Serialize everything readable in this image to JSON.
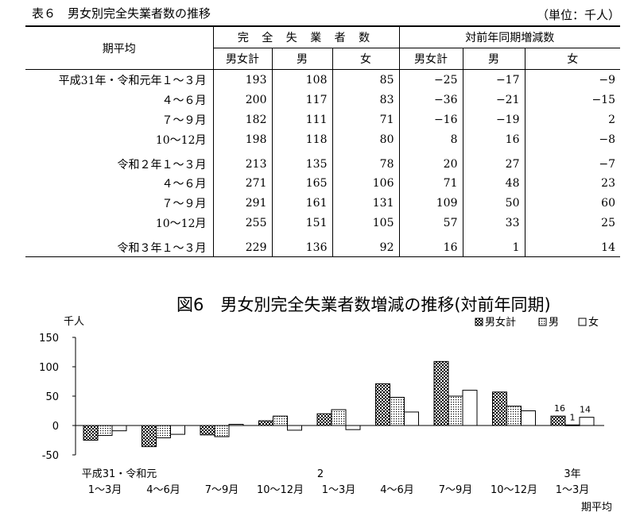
{
  "table": {
    "title": "表６　男女別完全失業者数の推移",
    "unit": "（単位：千人）",
    "period_header": "期平均",
    "group1": "完 全 失 業 者 数",
    "group2": "対前年同期増減数",
    "cols": [
      "男女計",
      "男",
      "女",
      "男女計",
      "男",
      "女"
    ],
    "rows": [
      {
        "label": "平成31年・令和元年１～３月",
        "values": [
          "193",
          "108",
          "85",
          "−25",
          "−17",
          "−9"
        ]
      },
      {
        "label": "４～６月",
        "values": [
          "200",
          "117",
          "83",
          "−36",
          "−21",
          "−15"
        ]
      },
      {
        "label": "７～９月",
        "values": [
          "182",
          "111",
          "71",
          "−16",
          "−19",
          "2"
        ]
      },
      {
        "label": "10～12月",
        "values": [
          "198",
          "118",
          "80",
          "8",
          "16",
          "−8"
        ]
      },
      {
        "label": "令和２年１～３月",
        "values": [
          "213",
          "135",
          "78",
          "20",
          "27",
          "−7"
        ]
      },
      {
        "label": "４～６月",
        "values": [
          "271",
          "165",
          "106",
          "71",
          "48",
          "23"
        ]
      },
      {
        "label": "７～９月",
        "values": [
          "291",
          "161",
          "131",
          "109",
          "50",
          "60"
        ]
      },
      {
        "label": "10～12月",
        "values": [
          "255",
          "151",
          "105",
          "57",
          "33",
          "25"
        ]
      },
      {
        "label": "令和３年１～３月",
        "values": [
          "229",
          "136",
          "92",
          "16",
          "1",
          "14"
        ]
      }
    ]
  },
  "chart_data": {
    "type": "bar",
    "title": "図6　男女別完全失業者数増減の推移(対前年同期)",
    "ylabel": "千人",
    "xlabel": "期平均",
    "ylim": [
      -50,
      150
    ],
    "yticks": [
      150,
      100,
      50,
      0,
      -50
    ],
    "categories": [
      "1～3月",
      "4～6月",
      "7～9月",
      "10～12月",
      "1～3月",
      "4～6月",
      "7～9月",
      "10～12月",
      "1～3月"
    ],
    "category_group_labels": [
      "平成31・令和元",
      "",
      "",
      "",
      "2",
      "",
      "",
      "",
      "3年"
    ],
    "series": [
      {
        "name": "男女計",
        "values": [
          -25,
          -36,
          -16,
          8,
          20,
          71,
          109,
          57,
          16
        ]
      },
      {
        "name": "男",
        "values": [
          -17,
          -21,
          -19,
          16,
          27,
          48,
          50,
          33,
          1
        ]
      },
      {
        "name": "女",
        "values": [
          -9,
          -15,
          2,
          -8,
          -7,
          23,
          60,
          25,
          14
        ]
      }
    ],
    "data_labels_last_period": [
      "16",
      "1",
      "14"
    ],
    "legend": "top-right"
  }
}
